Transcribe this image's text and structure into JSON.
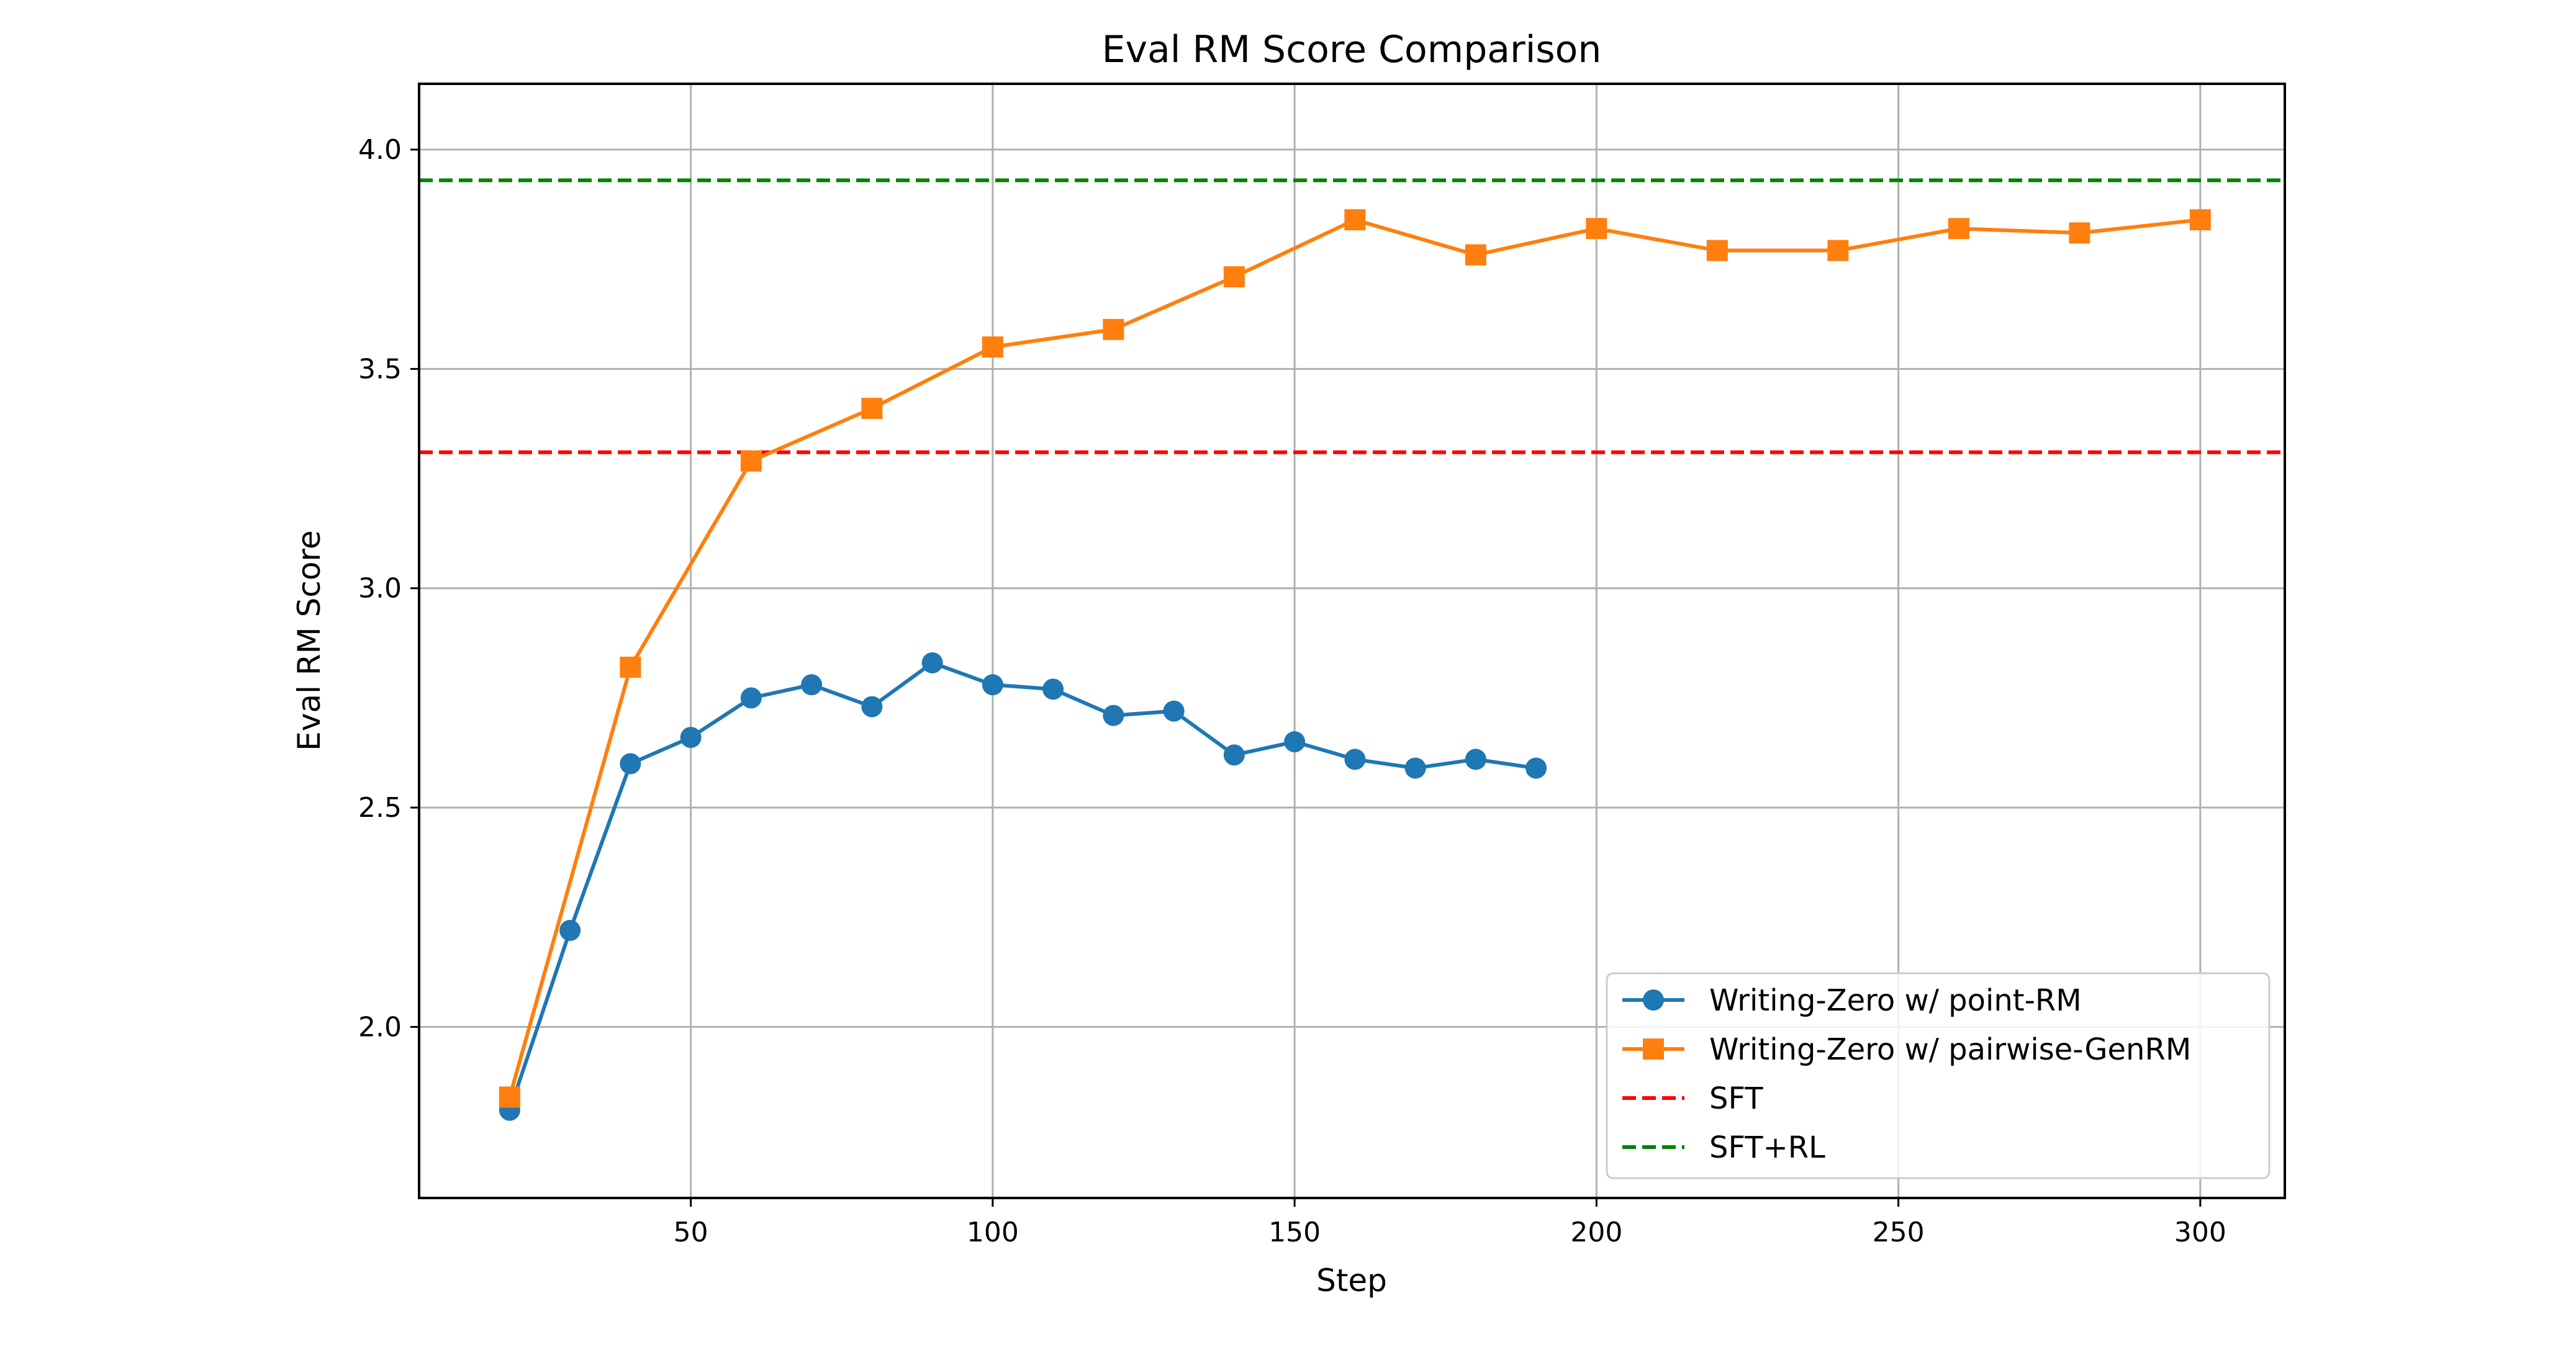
{
  "chart_data": {
    "type": "line",
    "title": "Eval RM Score Comparison",
    "xlabel": "Step",
    "ylabel": "Eval RM Score",
    "xlim": [
      5,
      314
    ],
    "ylim": [
      1.61,
      4.15
    ],
    "xticks": [
      50,
      100,
      150,
      200,
      250,
      300
    ],
    "yticks": [
      2.0,
      2.5,
      3.0,
      3.5,
      4.0
    ],
    "grid": true,
    "legend_position": "lower-right",
    "series": [
      {
        "name": "Writing-Zero w/ point-RM",
        "color": "#1f77b4",
        "marker": "circle",
        "x": [
          20,
          30,
          40,
          50,
          60,
          70,
          80,
          90,
          100,
          110,
          120,
          130,
          140,
          150,
          160,
          170,
          180,
          190
        ],
        "y": [
          1.81,
          2.22,
          2.6,
          2.66,
          2.75,
          2.78,
          2.73,
          2.83,
          2.78,
          2.77,
          2.71,
          2.72,
          2.62,
          2.65,
          2.61,
          2.59,
          2.61,
          2.59
        ]
      },
      {
        "name": "Writing-Zero w/ pairwise-GenRM",
        "color": "#ff7f0e",
        "marker": "square",
        "x": [
          20,
          40,
          60,
          80,
          100,
          120,
          140,
          160,
          180,
          200,
          220,
          240,
          260,
          280,
          300
        ],
        "y": [
          1.84,
          2.82,
          3.29,
          3.41,
          3.55,
          3.59,
          3.71,
          3.84,
          3.76,
          3.82,
          3.77,
          3.77,
          3.82,
          3.81,
          3.84
        ]
      }
    ],
    "reference_lines": [
      {
        "name": "SFT",
        "y": 3.31,
        "color": "#ff0000",
        "style": "dashed"
      },
      {
        "name": "SFT+RL",
        "y": 3.93,
        "color": "#008000",
        "style": "dashed"
      }
    ]
  }
}
